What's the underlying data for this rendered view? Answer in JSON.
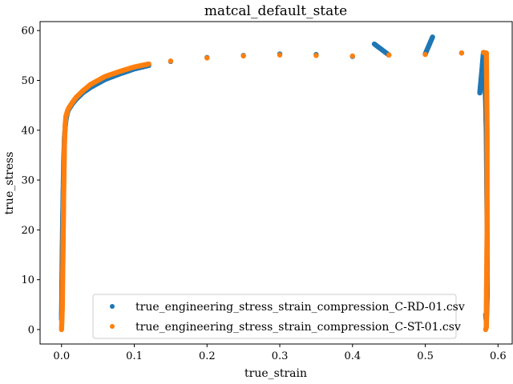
{
  "chart_data": {
    "type": "scatter",
    "title": "matcal_default_state",
    "xlabel": "true_strain",
    "ylabel": "true_stress",
    "xlim": [
      -0.0295,
      0.6195
    ],
    "ylim": [
      -2.9,
      61.8
    ],
    "xticks": [
      0.0,
      0.1,
      0.2,
      0.3,
      0.4,
      0.5,
      0.6
    ],
    "xtick_labels": [
      "0.0",
      "0.1",
      "0.2",
      "0.3",
      "0.4",
      "0.5",
      "0.6"
    ],
    "yticks": [
      0,
      10,
      20,
      30,
      40,
      50,
      60
    ],
    "ytick_labels": [
      "0",
      "10",
      "20",
      "30",
      "40",
      "50",
      "60"
    ],
    "grid": false,
    "legend_position": "lower-center",
    "series": [
      {
        "name": "true_engineering_stress_strain_compression_C-RD-01.csv",
        "color": "#1f77b4",
        "x": [
          0.0,
          0.001,
          0.002,
          0.003,
          0.004,
          0.005,
          0.006,
          0.008,
          0.01,
          0.015,
          0.02,
          0.03,
          0.04,
          0.05,
          0.06,
          0.08,
          0.1,
          0.12,
          0.15,
          0.2,
          0.25,
          0.3,
          0.35,
          0.4,
          0.43,
          0.45,
          0.5,
          0.51,
          0.55,
          0.575,
          0.58,
          0.583,
          0.584,
          0.585,
          0.585,
          0.584,
          0.584,
          0.583
        ],
        "y": [
          2,
          16,
          26,
          34,
          38.5,
          40.5,
          42,
          43.5,
          44.2,
          45.3,
          46.2,
          47.6,
          48.6,
          49.4,
          50.2,
          51.3,
          52.3,
          53.0,
          53.8,
          54.6,
          55.0,
          55.3,
          55.2,
          54.8,
          57.3,
          55.1,
          55.3,
          58.7,
          55.5,
          47.5,
          55.6,
          45.8,
          38.5,
          20,
          6.5,
          0.5,
          1.5,
          3
        ]
      },
      {
        "name": "true_engineering_stress_strain_compression_C-ST-01.csv",
        "color": "#ff7f0e",
        "x": [
          0.0,
          0.001,
          0.002,
          0.003,
          0.004,
          0.005,
          0.006,
          0.008,
          0.01,
          0.015,
          0.02,
          0.03,
          0.04,
          0.05,
          0.06,
          0.08,
          0.1,
          0.12,
          0.15,
          0.2,
          0.25,
          0.3,
          0.35,
          0.4,
          0.45,
          0.5,
          0.55,
          0.58,
          0.584,
          0.585,
          0.585,
          0.584,
          0.584,
          0.583
        ],
        "y": [
          0,
          4,
          15,
          28,
          37,
          41,
          42.8,
          43.8,
          44.5,
          45.6,
          46.6,
          48.0,
          49.2,
          50.0,
          50.8,
          51.8,
          52.7,
          53.3,
          53.9,
          54.5,
          54.9,
          55.1,
          55.0,
          54.9,
          55.1,
          55.2,
          55.5,
          55.6,
          55.5,
          40,
          20,
          5,
          0.5,
          0
        ]
      }
    ]
  }
}
